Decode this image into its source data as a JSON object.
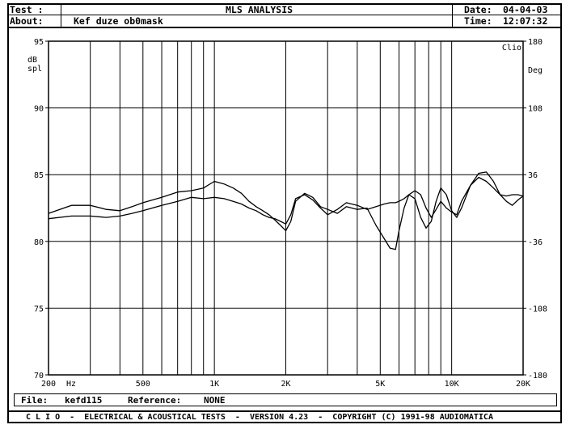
{
  "header": {
    "test_label": "Test :",
    "title": "MLS ANALYSIS",
    "date_label": "Date:",
    "date_value": "04-04-03",
    "about_label": "About:",
    "about_value": "Kef duze ob0mask",
    "time_label": "Time:",
    "time_value": "12:07:32"
  },
  "footer": {
    "file_label": "File:",
    "file_value": "kefd115",
    "reference_label": "Reference:",
    "reference_value": "NONE",
    "banner": "C L I O  -  ELECTRICAL & ACOUSTICAL TESTS  -  VERSION 4.23  -  COPYRIGHT (C) 1991-98 AUDIOMATICA"
  },
  "chart_data": {
    "type": "line",
    "title": "MLS ANALYSIS",
    "xscale": "log",
    "xlim": [
      200,
      20000
    ],
    "xtick_labels": [
      {
        "x": 200,
        "label": "200"
      },
      {
        "x": 500,
        "label": "500"
      },
      {
        "x": 1000,
        "label": "1K"
      },
      {
        "x": 2000,
        "label": "2K"
      },
      {
        "x": 5000,
        "label": "5K"
      },
      {
        "x": 10000,
        "label": "10K"
      },
      {
        "x": 20000,
        "label": "20K"
      }
    ],
    "xunit": "Hz",
    "ylim": [
      70,
      95
    ],
    "yticks": [
      70,
      75,
      80,
      85,
      90,
      95
    ],
    "yunit_lines": [
      "dB",
      "spl"
    ],
    "y2lim": [
      -180,
      180
    ],
    "y2ticks": [
      -180,
      -108,
      -36,
      36,
      108,
      180
    ],
    "y2unit": "Deg",
    "corner_label": "Clio",
    "grid": true,
    "series": [
      {
        "x": [
          200,
          250,
          300,
          350,
          400,
          450,
          500,
          600,
          700,
          800,
          900,
          1000,
          1100,
          1200,
          1300,
          1400,
          1500,
          1600,
          1700,
          1800,
          1900,
          2000,
          2100,
          2200,
          2400,
          2600,
          2800,
          3000,
          3300,
          3600,
          4000,
          4400,
          4800,
          5200,
          5500,
          5800,
          6000,
          6300,
          6600,
          7000,
          7400,
          7800,
          8200,
          8600,
          9000,
          9500,
          10000,
          10500,
          11000,
          12000,
          13000,
          14000,
          15000,
          16000,
          17000,
          18000,
          19000,
          20000
        ],
        "values": [
          82.1,
          82.7,
          82.7,
          82.4,
          82.3,
          82.6,
          82.9,
          83.3,
          83.7,
          83.8,
          84.0,
          84.5,
          84.3,
          84.0,
          83.6,
          83.0,
          82.6,
          82.3,
          82.0,
          81.6,
          81.2,
          80.8,
          81.5,
          83.0,
          83.6,
          83.3,
          82.6,
          82.4,
          82.1,
          82.6,
          82.4,
          82.5,
          81.2,
          80.2,
          79.5,
          79.4,
          80.8,
          82.5,
          83.5,
          83.2,
          81.8,
          81.0,
          81.5,
          83.0,
          84.0,
          83.5,
          82.3,
          81.8,
          82.5,
          84.2,
          85.1,
          85.2,
          84.5,
          83.5,
          83.0,
          82.7,
          83.1,
          83.4
        ]
      },
      {
        "x": [
          200,
          250,
          300,
          350,
          400,
          450,
          500,
          600,
          700,
          800,
          900,
          1000,
          1100,
          1200,
          1300,
          1400,
          1500,
          1600,
          1700,
          1800,
          1900,
          2000,
          2100,
          2200,
          2400,
          2600,
          2800,
          3000,
          3300,
          3600,
          4000,
          4400,
          4800,
          5200,
          5500,
          5800,
          6000,
          6300,
          6600,
          7000,
          7400,
          7800,
          8200,
          8600,
          9000,
          9500,
          10000,
          10500,
          11000,
          12000,
          13000,
          14000,
          15000,
          16000,
          17000,
          18000,
          19000,
          20000
        ],
        "values": [
          81.7,
          81.9,
          81.9,
          81.8,
          81.9,
          82.1,
          82.3,
          82.7,
          83.0,
          83.3,
          83.2,
          83.3,
          83.2,
          83.0,
          82.8,
          82.5,
          82.3,
          82.0,
          81.8,
          81.7,
          81.5,
          81.3,
          82.0,
          83.2,
          83.5,
          83.1,
          82.5,
          82.0,
          82.4,
          82.9,
          82.7,
          82.4,
          82.6,
          82.8,
          82.9,
          82.9,
          83.0,
          83.2,
          83.5,
          83.8,
          83.5,
          82.5,
          81.8,
          82.4,
          83.0,
          82.5,
          82.2,
          82.0,
          83.0,
          84.2,
          84.8,
          84.5,
          84.0,
          83.5,
          83.4,
          83.5,
          83.5,
          83.4
        ]
      }
    ]
  }
}
